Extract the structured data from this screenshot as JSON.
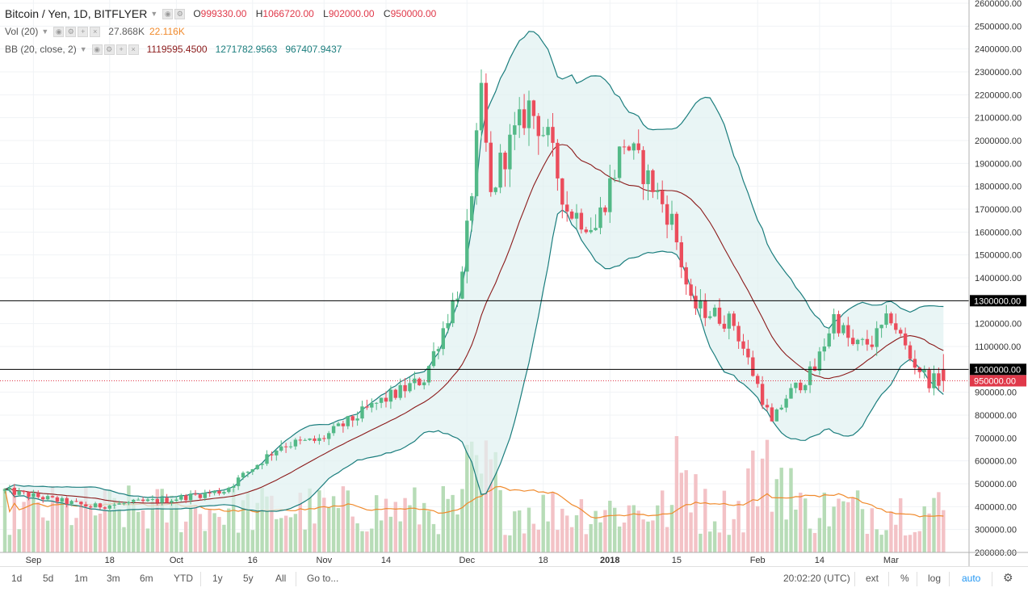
{
  "header": {
    "symbol": "Bitcoin / Yen, 1D, BITFLYER",
    "open_label": "O",
    "open": "999330.00",
    "high_label": "H",
    "high": "1066720.00",
    "low_label": "L",
    "low": "902000.00",
    "close_label": "C",
    "close": "950000.00"
  },
  "volume_legend": {
    "label": "Vol (20)",
    "value": "27.868K",
    "ma": "22.116K"
  },
  "bb_legend": {
    "label": "BB (20, close, 2)",
    "basis": "1119595.4500",
    "upper": "1271782.9563",
    "lower": "967407.9437"
  },
  "chart_data": {
    "type": "candlestick",
    "title": "Bitcoin / Yen, 1D, BITFLYER",
    "currency": "JPY",
    "y_range": [
      200000,
      2600000
    ],
    "y_tick_step": 100000,
    "y_ticks": [
      "200000.00",
      "300000.00",
      "400000.00",
      "500000.00",
      "600000.00",
      "700000.00",
      "800000.00",
      "900000.00",
      "1000000.00",
      "1100000.00",
      "1200000.00",
      "1300000.00",
      "1400000.00",
      "1500000.00",
      "1600000.00",
      "1700000.00",
      "1800000.00",
      "1900000.00",
      "2000000.00",
      "2100000.00",
      "2200000.00",
      "2300000.00",
      "2400000.00",
      "2500000.00",
      "2600000.00"
    ],
    "x_ticks": [
      {
        "label": "Sep",
        "index": 6
      },
      {
        "label": "18",
        "index": 22
      },
      {
        "label": "Oct",
        "index": 36
      },
      {
        "label": "16",
        "index": 52
      },
      {
        "label": "Nov",
        "index": 67
      },
      {
        "label": "14",
        "index": 80
      },
      {
        "label": "Dec",
        "index": 97
      },
      {
        "label": "18",
        "index": 113
      },
      {
        "label": "2018",
        "index": 127
      },
      {
        "label": "15",
        "index": 141
      },
      {
        "label": "Feb",
        "index": 158
      },
      {
        "label": "14",
        "index": 171
      },
      {
        "label": "Mar",
        "index": 186
      }
    ],
    "anchors_index": [
      0,
      18,
      34,
      46,
      58,
      66,
      78,
      88,
      96,
      100,
      102,
      104,
      110,
      114,
      118,
      124,
      130,
      136,
      140,
      144,
      148,
      153,
      158,
      161,
      164,
      170,
      174,
      178,
      182,
      186,
      190,
      194
    ],
    "anchors_close": [
      470000,
      400000,
      430000,
      470000,
      670000,
      690000,
      850000,
      960000,
      1400000,
      2180000,
      1750000,
      1900000,
      2150000,
      2000000,
      1700000,
      1620000,
      2000000,
      1800000,
      1650000,
      1280000,
      1250000,
      1200000,
      930000,
      760000,
      880000,
      1000000,
      1230000,
      1100000,
      1120000,
      1230000,
      1050000,
      950000
    ],
    "horizontal_lines": [
      {
        "value": 1300000,
        "label": "1300000.00",
        "color": "#000000"
      },
      {
        "value": 1000000,
        "label": "1000000.00",
        "color": "#000000"
      }
    ],
    "last_price": {
      "value": 950000,
      "label": "950000.00",
      "color": "#e0394a"
    },
    "bollinger": {
      "period": 20,
      "mult": 2,
      "basis_color": "#8b1a1a",
      "band_color": "#1a7d7d",
      "fill": "#e0f1f1"
    },
    "volume": {
      "ma_period": 20,
      "ma_color": "#f08a2c",
      "up_color": "#b7dcb7",
      "down_color": "#f3c2c6"
    },
    "colors": {
      "up": "#53b987",
      "down": "#eb4d5c"
    }
  },
  "time_axis_text": [
    "Sep",
    "18",
    "Oct",
    "16",
    "Nov",
    "14",
    "Dec",
    "18",
    "2018",
    "15",
    "Feb",
    "14",
    "Mar"
  ],
  "toolbar": {
    "ranges": [
      "1d",
      "5d",
      "1m",
      "3m",
      "6m",
      "YTD",
      "1y",
      "5y",
      "All"
    ],
    "goto": "Go to...",
    "clock": "20:02:20 (UTC)",
    "ext": "ext",
    "pct": "%",
    "log": "log",
    "auto": "auto",
    "gear": "gear-icon"
  }
}
